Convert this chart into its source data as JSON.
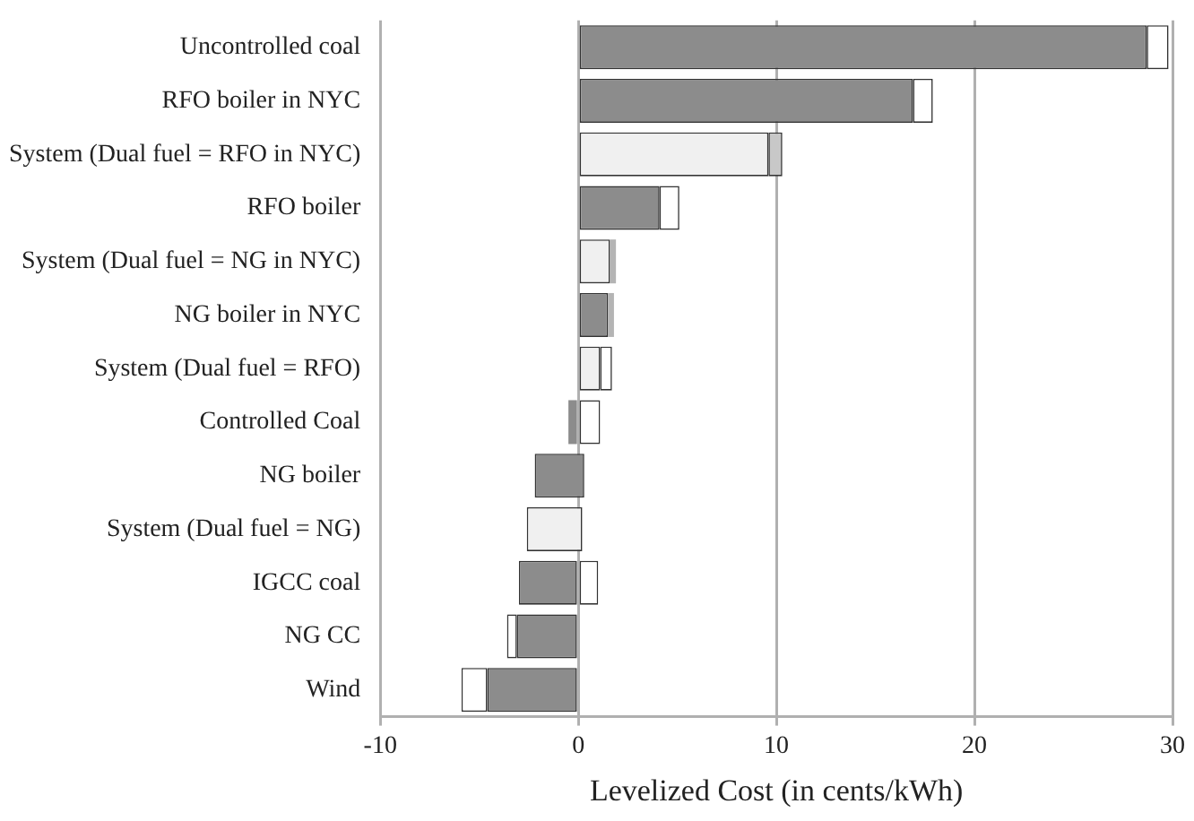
{
  "chart_data": {
    "type": "bar",
    "orientation": "horizontal",
    "xlabel": "Levelized Cost (in cents/kWh)",
    "categories": [
      "Uncontrolled coal",
      "RFO boiler in NYC",
      "System (Dual fuel = RFO in NYC)",
      "RFO boiler",
      "System (Dual fuel = NG in NYC)",
      "NG boiler in NYC",
      "System (Dual fuel = RFO)",
      "Controlled Coal",
      "NG boiler",
      "System (Dual fuel = NG)",
      "IGCC coal",
      "NG CC",
      "Wind"
    ],
    "series": [
      {
        "colors": [
          "#8c8c8c",
          "#8c8c8c",
          "#f0f0f0",
          "#8c8c8c",
          "#f0f0f0",
          "#8c8c8c",
          "#f0f0f0",
          "#8c8c8c",
          "#8c8c8c",
          "#f0f0f0",
          "#8c8c8c",
          "#8c8c8c",
          "#8c8c8c"
        ],
        "base": [
          0,
          0,
          0,
          0,
          0,
          0,
          0,
          -0.5,
          -2.2,
          -2.6,
          -3,
          -3.1,
          -4.6
        ],
        "values": [
          28.7,
          16.9,
          9.6,
          4.1,
          1.6,
          1.5,
          1.1,
          0.5,
          2.5,
          2.8,
          3,
          3.1,
          4.6
        ]
      },
      {
        "colors": [
          "#ffffff",
          "#ffffff",
          "#c8c8c8",
          "#ffffff",
          "#b4b4b4",
          "#b4b4b4",
          "#ffffff",
          "#ffffff",
          "#ffffff",
          "#ffffff",
          "#ffffff",
          "#ffffff",
          "#ffffff"
        ],
        "base": [
          28.7,
          16.9,
          9.6,
          4.1,
          1.6,
          1.5,
          1.1,
          0,
          null,
          null,
          0,
          -3.6,
          -5.9
        ],
        "values": [
          1.1,
          1,
          0.7,
          1,
          0.3,
          0.3,
          0.6,
          1.1,
          null,
          null,
          1,
          0.5,
          1.3
        ]
      }
    ],
    "xlim": [
      -10,
      30
    ],
    "xticks": [
      -10,
      0,
      10,
      20,
      30
    ],
    "grid": "x",
    "legend": false
  }
}
